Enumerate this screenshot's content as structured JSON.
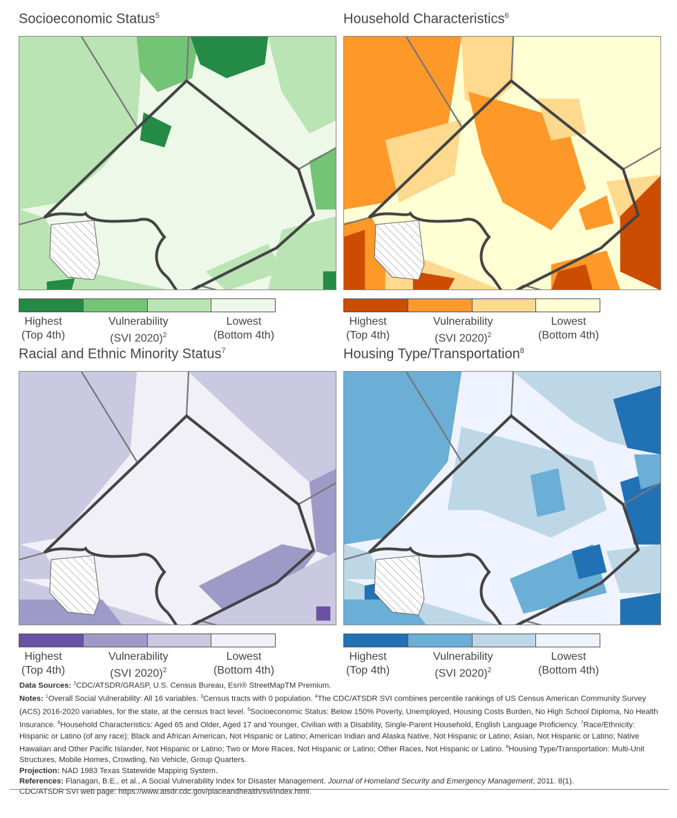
{
  "panels": [
    {
      "title": "Socioeconomic Status",
      "footnote": "5",
      "colors": [
        "#238b45",
        "#74c476",
        "#bae4b3",
        "#edf8e9"
      ]
    },
    {
      "title": "Household Characteristics",
      "footnote": "6",
      "colors": [
        "#cc4c02",
        "#fe9929",
        "#fed98e",
        "#ffffd4"
      ]
    },
    {
      "title": "Racial and Ethnic Minority Status",
      "footnote": "7",
      "colors": [
        "#6a51a3",
        "#9e9ac8",
        "#cbc9e2",
        "#f2f0f7"
      ]
    },
    {
      "title": "Housing Type/Transportation",
      "footnote": "8",
      "colors": [
        "#2171b5",
        "#6baed6",
        "#bdd7e7",
        "#eff3ff"
      ]
    }
  ],
  "legend": {
    "highest_1": "Highest",
    "highest_2": "(Top 4th)",
    "mid_1": "Vulnerability",
    "mid_2": "(SVI 2020)",
    "mid_sup": "2",
    "lowest_1": "Lowest",
    "lowest_2": "(Bottom 4th)"
  },
  "notes": {
    "sources_label": "Data Sources:",
    "sources_sup": "2",
    "sources_text": "CDC/ATSDR/GRASP, U.S. Census Bureau, Esri® StreetMapTM Premium.",
    "notes_label": "Notes:",
    "n1_sup": "1",
    "n1": "Overall Social Vulnerability: All 16 variables.",
    "n3_sup": "3",
    "n3": "Census tracts with 0 population.",
    "n4_sup": "4",
    "n4": "The CDC/ATSDR SVI combines percentile rankings of US Census American Community Survey (ACS) 2016-2020 variables, for the state, at the census tract level.",
    "n5_sup": "5",
    "n5": "Socioeconomic Status: Below 150% Poverty, Unemployed, Housing Costs Burden, No High School Diploma, No Health Insurance.",
    "n6_sup": "6",
    "n6": "Household Characteristics: Aged 65 and Older, Aged 17 and Younger, Civilian with a Disability, Single-Parent Household, English Language Proficiency.",
    "n7_sup": "7",
    "n7": "Race/Ethnicity: Hispanic or Latino (of any race); Black and African American, Not Hispanic or Latino; American Indian and Alaska Native, Not Hispanic or Latino; Asian, Not Hispanic or Latino; Native Hawaiian and Other Pacific Islander, Not Hispanic or Latino; Two or More Races, Not Hispanic or Latino; Other Races, Not Hispanic or Latino.",
    "n8_sup": "8",
    "n8": "Housing Type/Transportation: Multi-Unit Structures, Mobile Homes, Crowding, No Vehicle, Group Quarters.",
    "projection_label": "Projection:",
    "projection_text": "NAD 1983 Texas Statewide Mapping System.",
    "references_label": "References:",
    "ref_text": "Flanagan, B.E., et al., A Social Vulnerability Index for Disaster Management.",
    "ref_journal": "Journal of Homeland Security and Emergency Management",
    "ref_tail": ", 2011. 8(1).",
    "ref_web": "CDC/ATSDR SVI web page: https://www.atsdr.cdc.gov/placeandhealth/svi/index.html."
  }
}
